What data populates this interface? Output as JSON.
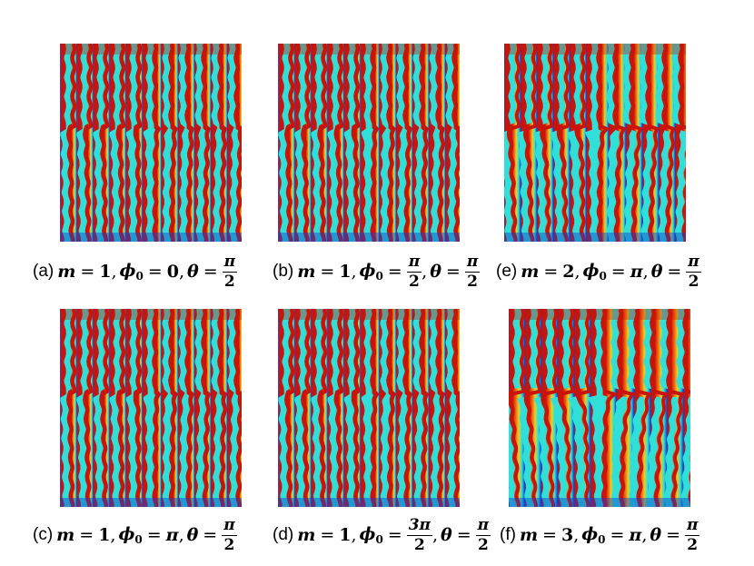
{
  "panels": [
    {
      "id": "a",
      "tag": "(a)",
      "m": "1",
      "phi": "0",
      "phi_is_frac": false,
      "phi_num": "",
      "phi_den": "",
      "theta_num": "π",
      "theta_den": "2",
      "defect": 1
    },
    {
      "id": "b",
      "tag": "(b)",
      "m": "1",
      "phi": "",
      "phi_is_frac": true,
      "phi_num": "π",
      "phi_den": "2",
      "theta_num": "π",
      "theta_den": "2",
      "defect": 1
    },
    {
      "id": "e",
      "tag": "(e)",
      "m": "2",
      "phi": "π",
      "phi_is_frac": false,
      "phi_num": "",
      "phi_den": "",
      "theta_num": "π",
      "theta_den": "2",
      "defect": 2
    },
    {
      "id": "c",
      "tag": "(c)",
      "m": "1",
      "phi": "π",
      "phi_is_frac": false,
      "phi_num": "",
      "phi_den": "",
      "theta_num": "π",
      "theta_den": "2",
      "defect": 1
    },
    {
      "id": "d",
      "tag": "(d)",
      "m": "1",
      "phi": "",
      "phi_is_frac": true,
      "phi_num": "3π",
      "phi_den": "2",
      "theta_num": "π",
      "theta_den": "2",
      "defect": 1
    },
    {
      "id": "f",
      "tag": "(f)",
      "m": "3",
      "phi": "π",
      "phi_is_frac": false,
      "phi_num": "",
      "phi_den": "",
      "theta_num": "π",
      "theta_den": "2",
      "defect": 3
    }
  ],
  "symbols": {
    "m": "m",
    "phi": "ϕ",
    "phi_sub": "0",
    "theta": "θ",
    "eq": "=",
    "comma": ","
  },
  "colors": {
    "crest": "#c8140a",
    "upper": "#f06010",
    "mid": "#e8d020",
    "lower": "#30e0d8",
    "trough": "#1040d0"
  }
}
